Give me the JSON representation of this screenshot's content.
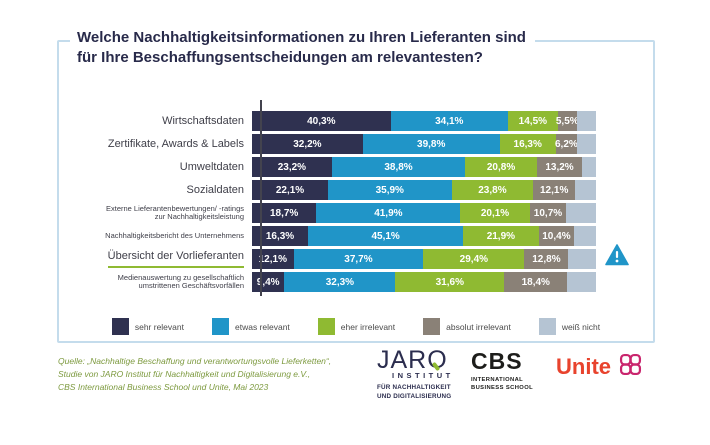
{
  "title": {
    "line1": "Welche Nachhaltigkeitsinformationen zu Ihren Lieferanten sind",
    "line2": "für Ihre Beschaffungsentscheidungen am relevantesten?"
  },
  "chart_data": {
    "type": "bar",
    "stacked": true,
    "orientation": "horizontal",
    "unit": "%",
    "xlim": [
      0,
      100
    ],
    "grid": false,
    "legend_position": "bottom",
    "categories": [
      {
        "label": "Wirtschaftsdaten",
        "small": false,
        "highlighted": false,
        "warning": false
      },
      {
        "label": "Zertifikate, Awards & Labels",
        "small": false,
        "highlighted": false,
        "warning": false
      },
      {
        "label": "Umweltdaten",
        "small": false,
        "highlighted": false,
        "warning": false
      },
      {
        "label": "Sozialdaten",
        "small": false,
        "highlighted": false,
        "warning": false
      },
      {
        "label": "Externe Lieferantenbewertungen/ -ratings zur Nachhaltigkeitsleistung",
        "small": true,
        "highlighted": false,
        "warning": false
      },
      {
        "label": "Nachhaltigkeitsbericht des Unternehmens",
        "small": true,
        "highlighted": false,
        "warning": false
      },
      {
        "label": "Übersicht der Vorlieferanten",
        "small": false,
        "highlighted": true,
        "warning": true
      },
      {
        "label": "Medienauswertung zu gesellschaftlich umstrittenen Geschäftsvorfällen",
        "small": true,
        "highlighted": false,
        "warning": false
      }
    ],
    "series": [
      {
        "name": "sehr relevant",
        "color": "#2f3150",
        "labels_shown": true,
        "values": [
          40.3,
          32.2,
          23.2,
          22.1,
          18.7,
          16.3,
          12.1,
          9.4
        ]
      },
      {
        "name": "etwas relevant",
        "color": "#2095c8",
        "labels_shown": true,
        "values": [
          34.1,
          39.8,
          38.8,
          35.9,
          41.9,
          45.1,
          37.7,
          32.3
        ]
      },
      {
        "name": "eher irrelevant",
        "color": "#8fba32",
        "labels_shown": true,
        "values": [
          14.5,
          16.3,
          20.8,
          23.8,
          20.1,
          21.9,
          29.4,
          31.6
        ]
      },
      {
        "name": "absolut irrelevant",
        "color": "#8a8177",
        "labels_shown": true,
        "values": [
          5.5,
          6.2,
          13.2,
          12.1,
          10.7,
          10.4,
          12.8,
          18.4
        ]
      },
      {
        "name": "weiß nicht",
        "color": "#b5c4d3",
        "labels_shown": false,
        "values": [
          5.6,
          5.5,
          4.0,
          6.1,
          8.6,
          6.3,
          8.0,
          8.3
        ]
      }
    ]
  },
  "colors": {
    "frame": "#c4dcec",
    "highlight_underline": "#8fba32",
    "warning_icon": "#2095c8"
  },
  "footer": {
    "source_lines": [
      "Quelle: „Nachhaltige Beschaffung und verantwortungsvolle Lieferketten“,",
      "Studie von JARO Institut für Nachhaltigkeit und Digitalisierung e.V.,",
      "CBS International Business School und Unite, Mai 2023"
    ],
    "logos": {
      "jaro": {
        "name": "JARO",
        "sub": "INSTITUT",
        "tagline1": "FÜR NACHHALTIGKEIT",
        "tagline2": "UND DIGITALISIERUNG"
      },
      "cbs": {
        "name": "CBS",
        "sub1": "INTERNATIONAL",
        "sub2": "BUSINESS SCHOOL"
      },
      "unite": {
        "name": "Unite"
      }
    }
  }
}
